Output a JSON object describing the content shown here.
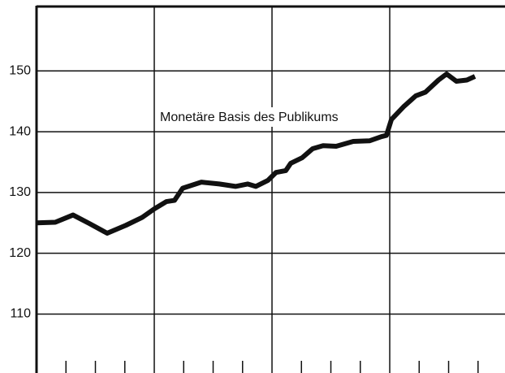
{
  "chart_data": {
    "type": "line",
    "annotation": "Monetäre Basis des Publikums",
    "x": [
      0,
      0.159,
      0.31,
      0.448,
      0.6,
      0.759,
      0.897,
      1.0,
      1.103,
      1.172,
      1.241,
      1.4,
      1.552,
      1.69,
      1.793,
      1.862,
      1.966,
      2.034,
      2.117,
      2.159,
      2.255,
      2.345,
      2.434,
      2.545,
      2.69,
      2.828,
      2.931,
      2.972,
      3.014,
      3.117,
      3.221,
      3.303,
      3.414,
      3.483,
      3.566,
      3.655,
      3.724
    ],
    "series": [
      {
        "color": "#111111",
        "values": [
          125.0,
          125.1,
          126.3,
          124.9,
          123.3,
          124.6,
          125.9,
          127.3,
          128.5,
          128.7,
          130.7,
          131.7,
          131.4,
          131.0,
          131.4,
          131.0,
          132.0,
          133.3,
          133.6,
          134.8,
          135.7,
          137.2,
          137.7,
          137.6,
          138.4,
          138.5,
          139.2,
          139.4,
          142.0,
          144.1,
          145.9,
          146.5,
          148.5,
          149.5,
          148.3,
          148.5,
          149.1
        ]
      }
    ],
    "xlim": [
      0,
      3.979
    ],
    "xgrid": [
      1,
      2,
      3
    ],
    "xticks": [
      0.25,
      0.5,
      0.75,
      1.25,
      1.5,
      1.75,
      2.25,
      2.5,
      2.75,
      3.25,
      3.5,
      3.75
    ],
    "ylim": [
      100.3,
      160.6
    ],
    "yticks": [
      110,
      120,
      130,
      140,
      150
    ],
    "grid": true
  }
}
